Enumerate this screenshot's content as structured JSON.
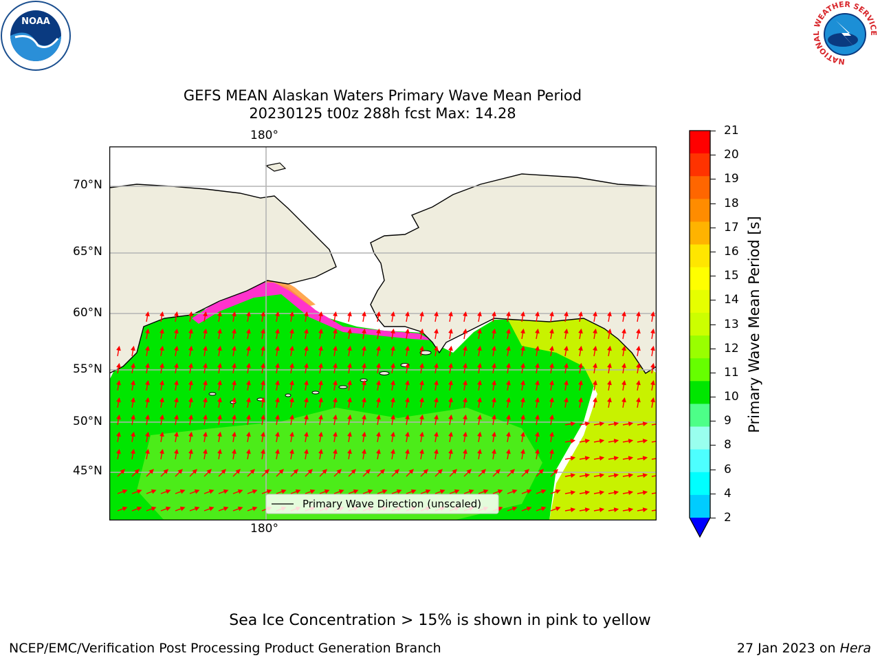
{
  "title": {
    "line1": "GEFS MEAN Alaskan Waters Primary Wave Mean Period",
    "line2": "20230125 t00z 288h fcst   Max: 14.28"
  },
  "map": {
    "lon_label_top": "180°",
    "lon_label_bottom": "180°",
    "lat_labels": [
      "70°N",
      "65°N",
      "60°N",
      "55°N",
      "50°N",
      "45°N"
    ],
    "legend_label": "Primary Wave Direction (unscaled)",
    "colors": {
      "land": "#efedde",
      "ocean_green": "#00e600",
      "ocean_lightgreen": "#66f200",
      "ocean_yellowgreen": "#c8f200",
      "ice_pink": "#ff33cc",
      "ice_orange": "#ff9933",
      "arrow": "#ff0000"
    }
  },
  "colorbar": {
    "label": "Primary Wave Mean Period [s]",
    "ticks": [
      "21",
      "20",
      "19",
      "18",
      "17",
      "16",
      "15",
      "14",
      "13",
      "12",
      "11",
      "10",
      "9",
      "8",
      "6",
      "4",
      "2"
    ],
    "colors": [
      "#ff0000",
      "#ff3300",
      "#ff6600",
      "#ff8c00",
      "#ffb300",
      "#ffe600",
      "#ffff00",
      "#e6ff00",
      "#ccff00",
      "#99ff00",
      "#66ff00",
      "#00e600",
      "#4dff88",
      "#99ffee",
      "#4dffff",
      "#00ffff",
      "#00ccff",
      "#0066ff"
    ]
  },
  "logos": {
    "left": "NOAA",
    "right_ring": "NATIONAL WEATHER SERVICE"
  },
  "note": "Sea Ice Concentration > 15% is shown in pink to yellow",
  "footer": {
    "left": "NCEP/EMC/Verification Post Processing Product Generation Branch",
    "right_date": "27 Jan 2023 on ",
    "right_host": "Hera"
  }
}
